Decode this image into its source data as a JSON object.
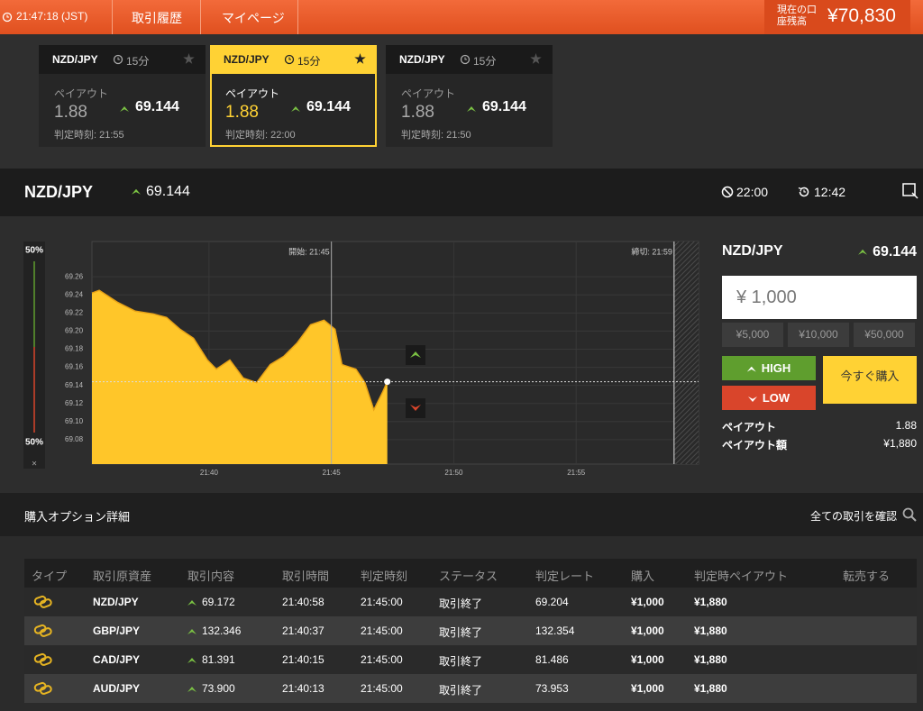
{
  "header": {
    "clock": "21:47:18 (JST)",
    "nav": [
      "取引履歴",
      "マイページ"
    ],
    "balance_label": "現在の口座残高",
    "balance": "¥70,830"
  },
  "cards": [
    {
      "pair": "NZD/JPY",
      "duration": "15分",
      "payout_label": "ペイアウト",
      "payout": "1.88",
      "rate": "69.144",
      "judge_time": "判定時刻: 21:55"
    },
    {
      "pair": "NZD/JPY",
      "duration": "15分",
      "payout_label": "ペイアウト",
      "payout": "1.88",
      "rate": "69.144",
      "judge_time": "判定時刻: 22:00"
    },
    {
      "pair": "NZD/JPY",
      "duration": "15分",
      "payout_label": "ペイアウト",
      "payout": "1.88",
      "rate": "69.144",
      "judge_time": "判定時刻: 21:50"
    }
  ],
  "selected_card": 1,
  "panel": {
    "pair": "NZD/JPY",
    "rate": "69.144",
    "close_time": "22:00",
    "remaining": "12:42"
  },
  "chart_data": {
    "type": "area",
    "color": "#ffc629",
    "x": [
      "21:35:13",
      "21:35:31",
      "21:36:15",
      "21:36:59",
      "21:37:43",
      "21:38:16",
      "21:38:49",
      "21:39:22",
      "21:39:56",
      "21:40:18",
      "21:40:51",
      "21:41:24",
      "21:41:57",
      "21:42:30",
      "21:43:03",
      "21:43:36",
      "21:44:09",
      "21:44:42",
      "21:45:09",
      "21:45:26",
      "21:46:00",
      "21:46:22",
      "21:46:44",
      "21:47:06",
      "21:47:17"
    ],
    "values": [
      69.242,
      69.245,
      69.232,
      69.222,
      69.219,
      69.215,
      69.202,
      69.192,
      69.168,
      69.158,
      69.168,
      69.148,
      69.143,
      69.163,
      69.172,
      69.187,
      69.207,
      69.212,
      69.202,
      69.163,
      69.158,
      69.143,
      69.113,
      69.133,
      69.144
    ],
    "xlim": [
      "21:35:13",
      "22:00:00"
    ],
    "xticks": [
      "21:40",
      "21:45",
      "21:50",
      "21:55"
    ],
    "ylim": [
      69.053,
      69.299
    ],
    "yticks": [
      69.08,
      {
        "value": 69.1,
        "label": "69.10"
      },
      69.12,
      69.14,
      69.16,
      69.18,
      {
        "value": 69.2,
        "label": "69.20"
      },
      69.22,
      69.24,
      69.26
    ],
    "annotations": [
      {
        "label": "開始: 21:45",
        "x": "21:45"
      },
      {
        "label": "締切: 21:59",
        "x": "21:59"
      }
    ],
    "grid": true
  },
  "gauge": {
    "top": "50%",
    "bottom": "50%",
    "close": "×"
  },
  "order": {
    "pair": "NZD/JPY",
    "rate": "69.144",
    "amount": "¥ 1,000",
    "quick": [
      "¥5,000",
      "¥10,000",
      "¥50,000"
    ],
    "high": "HIGH",
    "low": "LOW",
    "buy": "今すぐ購入",
    "payout_label": "ペイアウト",
    "payout": "1.88",
    "payout_amount_label": "ペイアウト額",
    "payout_amount": "¥1,880"
  },
  "details": {
    "title": "購入オプション詳細",
    "link": "全ての取引を確認",
    "columns": [
      "タイプ",
      "取引原資産",
      "取引内容",
      "取引時間",
      "判定時刻",
      "ステータス",
      "判定レート",
      "購入",
      "判定時ペイアウト",
      "転売する"
    ],
    "rows": [
      [
        "NZD/JPY",
        "69.172",
        "21:40:58",
        "21:45:00",
        "取引終了",
        "69.204",
        "¥1,000",
        "¥1,880"
      ],
      [
        "GBP/JPY",
        "132.346",
        "21:40:37",
        "21:45:00",
        "取引終了",
        "132.354",
        "¥1,000",
        "¥1,880"
      ],
      [
        "CAD/JPY",
        "81.391",
        "21:40:15",
        "21:45:00",
        "取引終了",
        "81.486",
        "¥1,000",
        "¥1,880"
      ],
      [
        "AUD/JPY",
        "73.900",
        "21:40:13",
        "21:45:00",
        "取引終了",
        "73.953",
        "¥1,000",
        "¥1,880"
      ]
    ]
  }
}
